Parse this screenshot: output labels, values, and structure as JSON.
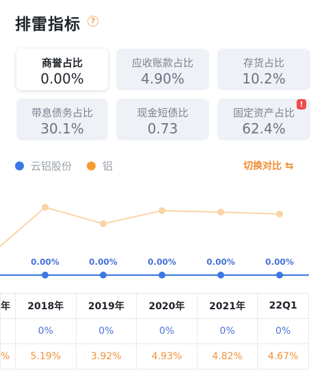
{
  "header": {
    "title": "排雷指标",
    "help_glyph": "?"
  },
  "cards": [
    {
      "label": "商誉占比",
      "value": "0.00%",
      "active": true
    },
    {
      "label": "应收账款占比",
      "value": "4.90%"
    },
    {
      "label": "存货占比",
      "value": "10.2%"
    },
    {
      "label": "带息债务占比",
      "value": "30.1%"
    },
    {
      "label": "现金短债比",
      "value": "0.73"
    },
    {
      "label": "固定资产占比",
      "value": "62.4%",
      "warning": "!"
    }
  ],
  "legend": [
    {
      "name": "云铝股份",
      "color": "#3b78e7"
    },
    {
      "name": "铝",
      "color": "#f59b2f"
    }
  ],
  "switch_label": "切换对比",
  "chart_data": {
    "type": "line",
    "categories": [
      "2018年",
      "2019年",
      "2020年",
      "2021年",
      "22Q1"
    ],
    "series": [
      {
        "name": "云铝股份",
        "values": [
          0,
          0,
          0,
          0,
          0
        ],
        "labels": [
          "0.00%",
          "0.00%",
          "0.00%",
          "0.00%",
          "0.00%"
        ],
        "color": "#3b78e7"
      },
      {
        "name": "铝",
        "values": [
          5.19,
          3.92,
          4.93,
          4.82,
          4.67
        ],
        "color": "#f9d4a4"
      }
    ]
  },
  "table": {
    "cut_header": "年",
    "cut_row2": "",
    "cut_row3": "%",
    "headers": [
      "2018年",
      "2019年",
      "2020年",
      "2021年",
      "22Q1"
    ],
    "row_company": [
      "0%",
      "0%",
      "0%",
      "0%",
      "0%"
    ],
    "row_industry": [
      "5.19%",
      "3.92%",
      "4.93%",
      "4.82%",
      "4.67%"
    ]
  }
}
